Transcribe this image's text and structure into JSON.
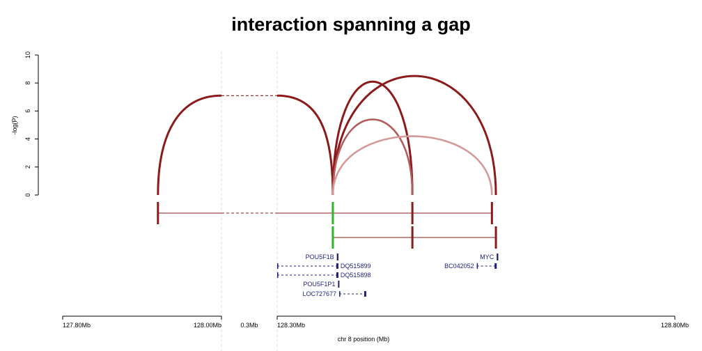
{
  "chart_data": {
    "type": "arc-interaction",
    "title": "interaction spanning a gap",
    "ylabel": "-log(P)",
    "xlabel": "chr 8 position (Mb)",
    "ylim": [
      0,
      10
    ],
    "y_ticks": [
      "0",
      "2",
      "4",
      "6",
      "8",
      "10"
    ],
    "x_ticks": [
      "127.80Mb",
      "128.00Mb",
      "0.3Mb",
      "128.30Mb",
      "128.80Mb"
    ],
    "axis_break": {
      "from_mb": 128.0,
      "to_mb": 128.3,
      "label": "0.3Mb"
    },
    "colors": {
      "arc_dark": "#8b1a1a",
      "arc_mid": "#b35c5c",
      "arc_light": "#d49a9a",
      "anchor_green": "#2bb52b",
      "gene": "#1f1f7a",
      "break_line": "#dcdcdc"
    },
    "anchors": {
      "a": 127.92,
      "pou5f1b": 128.37,
      "mid": 128.47,
      "myc_up": 128.57,
      "myc": 128.575
    },
    "interactions": [
      {
        "from": "a",
        "to": "pou5f1b",
        "logp": 7.1,
        "color": "#8b1a1a",
        "gap": true
      },
      {
        "from": "pou5f1b",
        "to": "mid",
        "logp": 8.1,
        "color": "#8b1a1a",
        "gap": false
      },
      {
        "from": "pou5f1b",
        "to": "myc",
        "logp": 8.5,
        "color": "#8b1a1a",
        "gap": false
      },
      {
        "from": "pou5f1b",
        "to": "mid",
        "logp": 5.4,
        "color": "#b35c5c",
        "gap": false
      },
      {
        "from": "pou5f1b",
        "to": "myc_up",
        "logp": 4.2,
        "color": "#d49a9a",
        "gap": false
      }
    ],
    "tracks": [
      {
        "left": "a",
        "right": "myc_up",
        "marks": [
          "a",
          "pou5f1b",
          "mid",
          "myc_up"
        ],
        "green": "pou5f1b",
        "gap": true
      },
      {
        "left": "pou5f1b",
        "right": "myc",
        "marks": [
          "pou5f1b",
          "mid",
          "myc"
        ],
        "green": "pou5f1b",
        "gap": false
      }
    ],
    "genes": [
      {
        "name": "POU5F1B",
        "start": 128.375,
        "end": 128.377,
        "label_side": "left",
        "row": 0
      },
      {
        "name": "MYC",
        "start": 128.576,
        "end": 128.578,
        "label_side": "left",
        "row": 0
      },
      {
        "name": "DQ515899",
        "start": 128.3,
        "end": 128.377,
        "label_side": "right",
        "row": 1
      },
      {
        "name": "BC042052",
        "start": 128.551,
        "end": 128.576,
        "label_side": "left",
        "row": 1
      },
      {
        "name": "DQ515898",
        "start": 128.3,
        "end": 128.377,
        "label_side": "right",
        "row": 2
      },
      {
        "name": "POU5F1P1",
        "start": 128.3765,
        "end": 128.377,
        "label_side": "left",
        "row": 3
      },
      {
        "name": "LOC727677",
        "start": 128.378,
        "end": 128.412,
        "label_side": "left",
        "row": 4
      }
    ]
  }
}
